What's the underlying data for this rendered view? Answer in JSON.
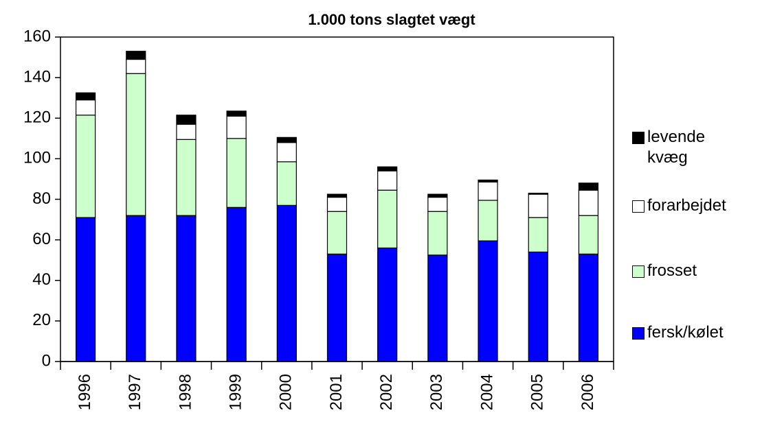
{
  "chart_data": {
    "type": "bar",
    "stacked": true,
    "title": "1.000 tons slagtet vægt",
    "categories": [
      "1996",
      "1997",
      "1998",
      "1999",
      "2000",
      "2001",
      "2002",
      "2003",
      "2004",
      "2005",
      "2006"
    ],
    "series": [
      {
        "name": "fersk/kølet",
        "color": "#0000ff",
        "values": [
          71,
          72,
          72,
          76,
          77,
          53,
          56,
          52.5,
          59.5,
          54,
          53
        ]
      },
      {
        "name": "frosset",
        "color": "#ccffcc",
        "values": [
          50.5,
          70,
          37.5,
          34,
          21.5,
          21,
          28.5,
          21.5,
          20,
          17,
          19
        ]
      },
      {
        "name": "forarbejdet",
        "color": "#ffffff",
        "values": [
          7.5,
          7,
          7.5,
          11,
          9.5,
          7,
          9.5,
          7,
          9,
          11.5,
          12.5
        ]
      },
      {
        "name": "levende kvæg",
        "color": "#000000",
        "values": [
          3.5,
          4,
          4.5,
          2.5,
          2.5,
          1.5,
          2,
          1.5,
          1,
          0.5,
          3.5
        ]
      }
    ],
    "ylim": [
      0,
      160
    ],
    "yticks": [
      0,
      20,
      40,
      60,
      80,
      100,
      120,
      140,
      160
    ],
    "grid": false,
    "legend": "right"
  }
}
